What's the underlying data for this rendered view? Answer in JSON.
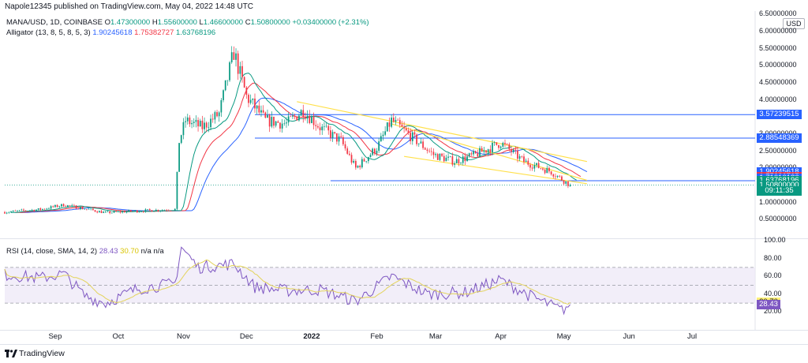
{
  "header": {
    "published_by": "Napole12345 published on TradingView.com, May 04, 2022 14:48 UTC"
  },
  "legend": {
    "symbol": "MANA/USD, 1D, COINBASE",
    "o_label": "O",
    "o": "1.47300000",
    "h_label": "H",
    "h": "1.55600000",
    "l_label": "L",
    "l": "1.46600000",
    "c_label": "C",
    "c": "1.50800000",
    "change": "+0.03400000 (+2.31%)",
    "alligator_label": "Alligator (13, 8, 5, 8, 5, 3)",
    "alligator_jaw": "1.90245618",
    "alligator_teeth": "1.75382727",
    "alligator_lips": "1.63768196"
  },
  "rsi_legend": {
    "label": "RSI (14, close, SMA, 14, 2)",
    "rsi": "28.43",
    "sma": "30.70",
    "na1": "n/a",
    "na2": "n/a"
  },
  "currency": "USD",
  "price_axis_ticks": [
    "6.50000000",
    "6.00000000",
    "5.50000000",
    "5.00000000",
    "4.50000000",
    "4.00000000",
    "3.50000000",
    "3.00000000",
    "2.50000000",
    "2.00000000",
    "1.50000000",
    "1.00000000",
    "0.50000000"
  ],
  "rsi_axis_ticks": [
    "100.00",
    "80.00",
    "60.00",
    "40.00",
    "20.00"
  ],
  "price_tags": [
    {
      "text": "3.57239515",
      "color": "#2962ff",
      "price": 3.572
    },
    {
      "text": "2.88548369",
      "color": "#2962ff",
      "price": 2.885
    },
    {
      "text": "1.90245618",
      "color": "#2962ff",
      "price": 1.902
    },
    {
      "text": "1.75382727",
      "color": "#f23645",
      "price": 1.754
    },
    {
      "text": "1.71010186",
      "color": "#2962ff",
      "price": 1.71
    },
    {
      "text": "1.63768196",
      "color": "#089981",
      "price": 1.638
    },
    {
      "text": "1.50800000",
      "color": "#089981",
      "price": 1.508
    },
    {
      "text": "09:11:35",
      "color": "#089981",
      "price": 1.33
    }
  ],
  "rsi_tags": [
    {
      "text": "30.70",
      "color": "#fff176",
      "fg": "#131722",
      "value": 30.7
    },
    {
      "text": "28.43",
      "color": "#7e57c2",
      "fg": "#ffffff",
      "value": 28.43
    }
  ],
  "time_axis": [
    {
      "text": "Sep",
      "date": "2021-09-01",
      "bold": false
    },
    {
      "text": "Oct",
      "date": "2021-10-01",
      "bold": false
    },
    {
      "text": "Nov",
      "date": "2021-11-01",
      "bold": false
    },
    {
      "text": "Dec",
      "date": "2021-12-01",
      "bold": false
    },
    {
      "text": "2022",
      "date": "2022-01-01",
      "bold": true
    },
    {
      "text": "Feb",
      "date": "2022-02-01",
      "bold": false
    },
    {
      "text": "Mar",
      "date": "2022-03-01",
      "bold": false
    },
    {
      "text": "Apr",
      "date": "2022-04-01",
      "bold": false
    },
    {
      "text": "May",
      "date": "2022-05-01",
      "bold": false
    },
    {
      "text": "Jun",
      "date": "2022-06-01",
      "bold": false
    },
    {
      "text": "Jul",
      "date": "2022-07-01",
      "bold": false
    }
  ],
  "footer": {
    "brand": "TradingView"
  },
  "colors": {
    "up": "#089981",
    "down": "#f23645",
    "jaw": "#2962ff",
    "teeth": "#f23645",
    "lips": "#089981",
    "trend": "#ffe04a",
    "hline": "#2962ff",
    "rsi": "#7e57c2",
    "rsi_sma": "#e3d35a",
    "band": "#ede7f6"
  },
  "chart_data": {
    "type": "candlestick",
    "symbol": "MANA/USD",
    "interval": "1D",
    "exchange": "COINBASE",
    "x_range": [
      "2021-08-08",
      "2022-07-31"
    ],
    "y_range": [
      0.0,
      6.6
    ],
    "price_path": [
      {
        "date": "2021-08-08",
        "close": 0.72
      },
      {
        "date": "2021-08-25",
        "close": 0.8
      },
      {
        "date": "2021-09-05",
        "close": 0.93
      },
      {
        "date": "2021-09-15",
        "close": 0.82
      },
      {
        "date": "2021-09-25",
        "close": 0.7
      },
      {
        "date": "2021-10-05",
        "close": 0.74
      },
      {
        "date": "2021-10-20",
        "close": 0.78
      },
      {
        "date": "2021-10-28",
        "close": 0.8
      },
      {
        "date": "2021-10-30",
        "close": 2.8
      },
      {
        "date": "2021-11-02",
        "close": 3.4
      },
      {
        "date": "2021-11-10",
        "close": 3.2
      },
      {
        "date": "2021-11-18",
        "close": 3.6
      },
      {
        "date": "2021-11-25",
        "close": 5.4
      },
      {
        "date": "2021-12-01",
        "close": 4.1
      },
      {
        "date": "2021-12-10",
        "close": 3.4
      },
      {
        "date": "2021-12-20",
        "close": 3.3
      },
      {
        "date": "2021-12-28",
        "close": 3.7
      },
      {
        "date": "2022-01-05",
        "close": 3.2
      },
      {
        "date": "2022-01-15",
        "close": 2.8
      },
      {
        "date": "2022-01-22",
        "close": 2.0
      },
      {
        "date": "2022-02-01",
        "close": 2.6
      },
      {
        "date": "2022-02-08",
        "close": 3.4
      },
      {
        "date": "2022-02-18",
        "close": 2.9
      },
      {
        "date": "2022-02-28",
        "close": 2.4
      },
      {
        "date": "2022-03-10",
        "close": 2.2
      },
      {
        "date": "2022-03-20",
        "close": 2.4
      },
      {
        "date": "2022-04-01",
        "close": 2.75
      },
      {
        "date": "2022-04-12",
        "close": 2.2
      },
      {
        "date": "2022-04-25",
        "close": 1.9
      },
      {
        "date": "2022-05-04",
        "close": 1.508
      }
    ],
    "last": {
      "date": "2022-05-04",
      "open": 1.473,
      "high": 1.556,
      "low": 1.466,
      "close": 1.508
    },
    "horizontal_levels": [
      3.572,
      2.885,
      1.638
    ],
    "trendlines": [
      {
        "from": {
          "date": "2021-12-25",
          "price": 3.95
        },
        "to": {
          "date": "2022-05-12",
          "price": 2.2
        }
      },
      {
        "from": {
          "date": "2022-02-08",
          "price": 3.3
        },
        "to": {
          "date": "2022-05-12",
          "price": 1.65
        }
      },
      {
        "from": {
          "date": "2022-02-14",
          "price": 2.35
        },
        "to": {
          "date": "2022-05-12",
          "price": 1.55
        }
      }
    ],
    "alligator": {
      "jaw": 1.902,
      "teeth": 1.754,
      "lips": 1.638
    },
    "rsi": {
      "y_range": [
        0,
        100
      ],
      "levels": [
        70,
        50,
        30
      ],
      "path": [
        {
          "date": "2021-08-08",
          "value": 62
        },
        {
          "date": "2021-08-25",
          "value": 58
        },
        {
          "date": "2021-09-05",
          "value": 63
        },
        {
          "date": "2021-09-15",
          "value": 38
        },
        {
          "date": "2021-09-25",
          "value": 30
        },
        {
          "date": "2021-10-10",
          "value": 46
        },
        {
          "date": "2021-10-28",
          "value": 52
        },
        {
          "date": "2021-10-31",
          "value": 93
        },
        {
          "date": "2021-11-08",
          "value": 70
        },
        {
          "date": "2021-11-25",
          "value": 74
        },
        {
          "date": "2021-12-05",
          "value": 48
        },
        {
          "date": "2021-12-20",
          "value": 44
        },
        {
          "date": "2022-01-05",
          "value": 45
        },
        {
          "date": "2022-01-22",
          "value": 32
        },
        {
          "date": "2022-02-08",
          "value": 60
        },
        {
          "date": "2022-02-25",
          "value": 40
        },
        {
          "date": "2022-03-15",
          "value": 42
        },
        {
          "date": "2022-04-01",
          "value": 56
        },
        {
          "date": "2022-04-15",
          "value": 38
        },
        {
          "date": "2022-04-30",
          "value": 22
        },
        {
          "date": "2022-05-04",
          "value": 28.43
        }
      ],
      "sma_last": 30.7
    }
  }
}
